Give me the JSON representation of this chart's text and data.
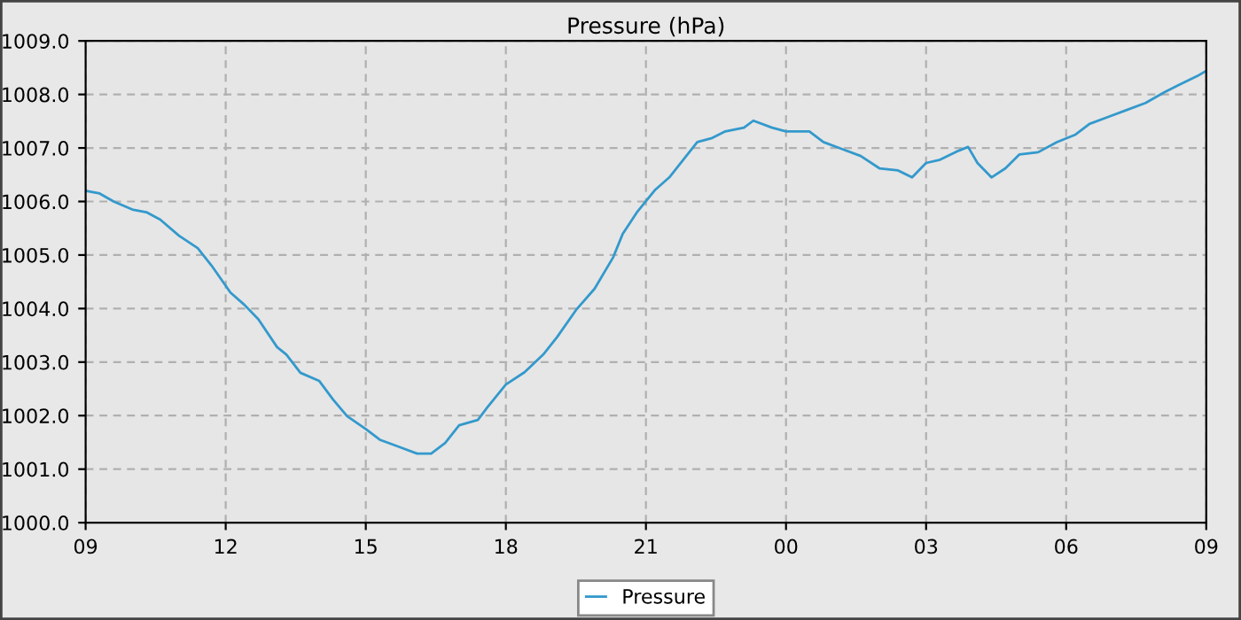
{
  "chart_data": {
    "type": "line",
    "title": "Pressure (hPa)",
    "x": [
      9.0,
      9.3,
      9.6,
      10.0,
      10.3,
      10.6,
      11.0,
      11.4,
      11.7,
      12.1,
      12.4,
      12.7,
      13.1,
      13.3,
      13.6,
      14.0,
      14.3,
      14.6,
      15.0,
      15.3,
      15.7,
      16.1,
      16.4,
      16.7,
      17.0,
      17.4,
      17.6,
      18.0,
      18.4,
      18.8,
      19.1,
      19.5,
      19.9,
      20.3,
      20.5,
      20.8,
      21.2,
      21.5,
      21.8,
      22.1,
      22.4,
      22.7,
      23.1,
      23.3,
      23.7,
      24.0,
      24.5,
      24.8,
      25.2,
      25.6,
      26.0,
      26.4,
      26.7,
      27.0,
      27.3,
      27.7,
      27.9,
      28.1,
      28.4,
      28.7,
      29.0,
      29.4,
      29.8,
      30.2,
      30.5,
      30.9,
      31.3,
      31.7,
      32.1,
      32.4,
      32.8,
      33.0
    ],
    "series": [
      {
        "name": "Pressure",
        "color": "#3399cc",
        "values": [
          1006.2,
          1006.15,
          1006.0,
          1005.85,
          1005.8,
          1005.66,
          1005.36,
          1005.13,
          1004.8,
          1004.3,
          1004.07,
          1003.8,
          1003.28,
          1003.14,
          1002.8,
          1002.65,
          1002.3,
          1001.99,
          1001.75,
          1001.55,
          1001.42,
          1001.29,
          1001.29,
          1001.49,
          1001.82,
          1001.92,
          1002.15,
          1002.58,
          1002.81,
          1003.14,
          1003.47,
          1003.97,
          1004.37,
          1004.96,
          1005.39,
          1005.79,
          1006.22,
          1006.45,
          1006.78,
          1007.11,
          1007.18,
          1007.31,
          1007.38,
          1007.51,
          1007.38,
          1007.31,
          1007.31,
          1007.11,
          1006.98,
          1006.85,
          1006.62,
          1006.58,
          1006.45,
          1006.72,
          1006.78,
          1006.95,
          1007.02,
          1006.72,
          1006.45,
          1006.62,
          1006.88,
          1006.92,
          1007.11,
          1007.25,
          1007.45,
          1007.58,
          1007.71,
          1007.84,
          1008.04,
          1008.17,
          1008.34,
          1008.44
        ]
      }
    ],
    "xlim": [
      9,
      33
    ],
    "xticks": [
      {
        "value": 9,
        "label": "09"
      },
      {
        "value": 12,
        "label": "12"
      },
      {
        "value": 15,
        "label": "15"
      },
      {
        "value": 18,
        "label": "18"
      },
      {
        "value": 21,
        "label": "21"
      },
      {
        "value": 24,
        "label": "00"
      },
      {
        "value": 27,
        "label": "03"
      },
      {
        "value": 30,
        "label": "06"
      },
      {
        "value": 33,
        "label": "09"
      }
    ],
    "ylim": [
      1000,
      1009
    ],
    "yticks": [
      {
        "value": 1000,
        "label": "1000.0"
      },
      {
        "value": 1001,
        "label": "1001.0"
      },
      {
        "value": 1002,
        "label": "1002.0"
      },
      {
        "value": 1003,
        "label": "1003.0"
      },
      {
        "value": 1004,
        "label": "1004.0"
      },
      {
        "value": 1005,
        "label": "1005.0"
      },
      {
        "value": 1006,
        "label": "1006.0"
      },
      {
        "value": 1007,
        "label": "1007.0"
      },
      {
        "value": 1008,
        "label": "1008.0"
      },
      {
        "value": 1009,
        "label": "1009.0"
      }
    ],
    "grid": true,
    "legend": "bottom",
    "line_style": "solid",
    "marker": "none"
  }
}
